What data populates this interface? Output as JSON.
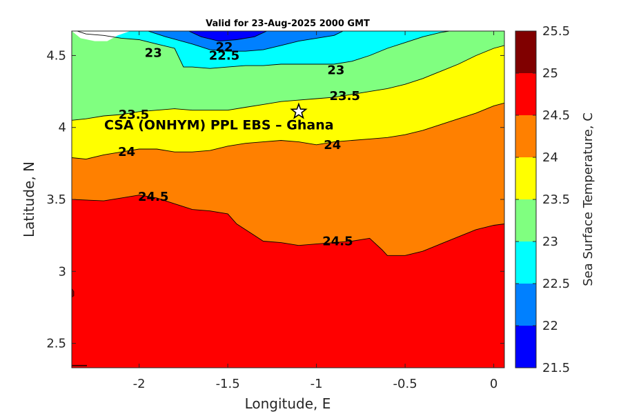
{
  "chart_data": {
    "type": "heatmap",
    "title": "Valid for 23-Aug-2025 2000 GMT",
    "xlabel": "Longitude, E",
    "ylabel": "Latitude, N",
    "xlim": [
      -2.38,
      0.06
    ],
    "ylim": [
      2.33,
      4.67
    ],
    "x_ticks": [
      "-2",
      "-1.5",
      "-1",
      "-0.5",
      "0"
    ],
    "x_tick_values": [
      -2,
      -1.5,
      -1,
      -0.5,
      0
    ],
    "y_ticks": [
      "2.5",
      "3",
      "3.5",
      "4",
      "4.5"
    ],
    "y_tick_values": [
      2.5,
      3,
      3.5,
      4,
      4.5
    ],
    "colorbar": {
      "label": "Sea Surface Temperature, C",
      "ticks": [
        "21.5",
        "22",
        "22.5",
        "23",
        "23.5",
        "24",
        "24.5",
        "25",
        "25.5"
      ],
      "levels": [
        {
          "range": [
            21.5,
            22.0
          ],
          "color": "#0000ff"
        },
        {
          "range": [
            22.0,
            22.5
          ],
          "color": "#0080ff"
        },
        {
          "range": [
            22.5,
            23.0
          ],
          "color": "#00ffff"
        },
        {
          "range": [
            23.0,
            23.5
          ],
          "color": "#80ff80"
        },
        {
          "range": [
            23.5,
            24.0
          ],
          "color": "#ffff00"
        },
        {
          "range": [
            24.0,
            24.5
          ],
          "color": "#ff8000"
        },
        {
          "range": [
            24.5,
            25.0
          ],
          "color": "#ff0000"
        },
        {
          "range": [
            25.0,
            25.5
          ],
          "color": "#800000"
        }
      ]
    },
    "contours": [
      {
        "level": 24.5,
        "points": [
          [
            -2.38,
            3.5
          ],
          [
            -2.2,
            3.49
          ],
          [
            -2.1,
            3.51
          ],
          [
            -2.0,
            3.53
          ],
          [
            -1.9,
            3.51
          ],
          [
            -1.8,
            3.47
          ],
          [
            -1.7,
            3.43
          ],
          [
            -1.6,
            3.42
          ],
          [
            -1.5,
            3.4
          ],
          [
            -1.45,
            3.33
          ],
          [
            -1.35,
            3.25
          ],
          [
            -1.3,
            3.21
          ],
          [
            -1.2,
            3.2
          ],
          [
            -1.1,
            3.18
          ],
          [
            -1.0,
            3.19
          ],
          [
            -0.9,
            3.2
          ],
          [
            -0.8,
            3.21
          ],
          [
            -0.7,
            3.23
          ],
          [
            -0.63,
            3.15
          ],
          [
            -0.6,
            3.11
          ],
          [
            -0.5,
            3.11
          ],
          [
            -0.4,
            3.14
          ],
          [
            -0.3,
            3.19
          ],
          [
            -0.2,
            3.24
          ],
          [
            -0.1,
            3.29
          ],
          [
            0.0,
            3.32
          ],
          [
            0.06,
            3.33
          ]
        ]
      },
      {
        "level": 24.0,
        "points": [
          [
            -2.38,
            3.79
          ],
          [
            -2.3,
            3.78
          ],
          [
            -2.2,
            3.81
          ],
          [
            -2.1,
            3.83
          ],
          [
            -2.0,
            3.85
          ],
          [
            -1.9,
            3.85
          ],
          [
            -1.8,
            3.83
          ],
          [
            -1.7,
            3.83
          ],
          [
            -1.6,
            3.84
          ],
          [
            -1.5,
            3.87
          ],
          [
            -1.4,
            3.89
          ],
          [
            -1.3,
            3.9
          ],
          [
            -1.2,
            3.91
          ],
          [
            -1.1,
            3.9
          ],
          [
            -1.0,
            3.88
          ],
          [
            -0.9,
            3.9
          ],
          [
            -0.8,
            3.91
          ],
          [
            -0.7,
            3.92
          ],
          [
            -0.6,
            3.93
          ],
          [
            -0.5,
            3.95
          ],
          [
            -0.4,
            3.98
          ],
          [
            -0.3,
            4.02
          ],
          [
            -0.2,
            4.06
          ],
          [
            -0.1,
            4.1
          ],
          [
            0.0,
            4.15
          ],
          [
            0.06,
            4.17
          ]
        ]
      },
      {
        "level": 23.5,
        "points": [
          [
            -2.38,
            4.05
          ],
          [
            -2.3,
            4.06
          ],
          [
            -2.2,
            4.08
          ],
          [
            -2.1,
            4.09
          ],
          [
            -2.0,
            4.11
          ],
          [
            -1.9,
            4.12
          ],
          [
            -1.8,
            4.13
          ],
          [
            -1.7,
            4.12
          ],
          [
            -1.6,
            4.12
          ],
          [
            -1.5,
            4.12
          ],
          [
            -1.4,
            4.14
          ],
          [
            -1.3,
            4.16
          ],
          [
            -1.2,
            4.18
          ],
          [
            -1.1,
            4.19
          ],
          [
            -1.0,
            4.2
          ],
          [
            -0.9,
            4.21
          ],
          [
            -0.8,
            4.23
          ],
          [
            -0.7,
            4.25
          ],
          [
            -0.6,
            4.27
          ],
          [
            -0.5,
            4.3
          ],
          [
            -0.4,
            4.34
          ],
          [
            -0.3,
            4.39
          ],
          [
            -0.2,
            4.44
          ],
          [
            -0.1,
            4.5
          ],
          [
            0.0,
            4.55
          ],
          [
            0.06,
            4.57
          ]
        ]
      },
      {
        "level": 23.0,
        "points": [
          [
            -2.35,
            4.67
          ],
          [
            -2.3,
            4.65
          ],
          [
            -2.2,
            4.64
          ],
          [
            -2.1,
            4.62
          ],
          [
            -2.0,
            4.61
          ],
          [
            -1.9,
            4.58
          ],
          [
            -1.8,
            4.55
          ],
          [
            -1.75,
            4.42
          ],
          [
            -1.7,
            4.42
          ],
          [
            -1.6,
            4.41
          ],
          [
            -1.5,
            4.42
          ],
          [
            -1.4,
            4.43
          ],
          [
            -1.3,
            4.43
          ],
          [
            -1.2,
            4.44
          ],
          [
            -1.1,
            4.44
          ],
          [
            -1.0,
            4.44
          ],
          [
            -0.9,
            4.44
          ],
          [
            -0.8,
            4.46
          ],
          [
            -0.7,
            4.5
          ],
          [
            -0.6,
            4.55
          ],
          [
            -0.5,
            4.59
          ],
          [
            -0.4,
            4.63
          ],
          [
            -0.3,
            4.66
          ],
          [
            -0.25,
            4.67
          ]
        ]
      },
      {
        "level": 22.5,
        "points": [
          [
            -1.95,
            4.67
          ],
          [
            -1.85,
            4.63
          ],
          [
            -1.7,
            4.58
          ],
          [
            -1.6,
            4.54
          ],
          [
            -1.5,
            4.53
          ],
          [
            -1.4,
            4.53
          ],
          [
            -1.3,
            4.54
          ],
          [
            -1.2,
            4.57
          ],
          [
            -1.1,
            4.6
          ],
          [
            -1.0,
            4.62
          ],
          [
            -0.9,
            4.64
          ],
          [
            -0.85,
            4.67
          ]
        ]
      },
      {
        "level": 22.0,
        "points": [
          [
            -1.72,
            4.67
          ],
          [
            -1.65,
            4.63
          ],
          [
            -1.55,
            4.6
          ],
          [
            -1.45,
            4.61
          ],
          [
            -1.35,
            4.63
          ],
          [
            -1.28,
            4.67
          ]
        ]
      }
    ],
    "contour_labels": [
      {
        "text": "22",
        "x": -1.52,
        "y": 4.56
      },
      {
        "text": "22.5",
        "x": -1.52,
        "y": 4.5
      },
      {
        "text": "23",
        "x": -1.92,
        "y": 4.52
      },
      {
        "text": "23",
        "x": -0.89,
        "y": 4.4
      },
      {
        "text": "23.5",
        "x": -0.84,
        "y": 4.22
      },
      {
        "text": "23.5",
        "x": -2.03,
        "y": 4.09
      },
      {
        "text": "24",
        "x": -2.07,
        "y": 3.83
      },
      {
        "text": "24",
        "x": -0.91,
        "y": 3.88
      },
      {
        "text": "24.5",
        "x": -1.92,
        "y": 3.52
      },
      {
        "text": "24.5",
        "x": -0.88,
        "y": 3.21
      }
    ],
    "site": {
      "name": "CSA (ONHYM) PPL EBS  – Ghana",
      "lon": -1.1,
      "lat": 4.11
    }
  }
}
